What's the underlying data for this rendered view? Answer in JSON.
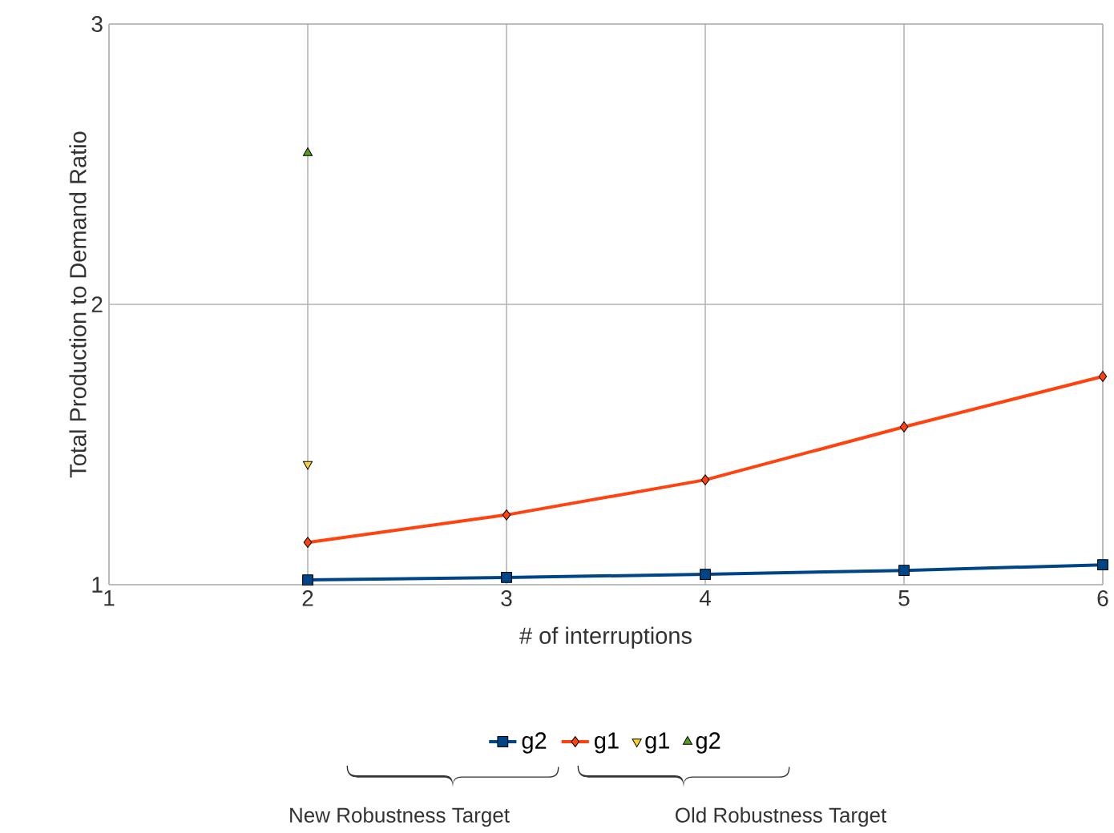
{
  "chart_data": {
    "type": "line",
    "xlabel": "# of interruptions",
    "ylabel": "Total Production to Demand Ratio",
    "x": [
      2,
      3,
      4,
      5,
      6
    ],
    "xlim": [
      1,
      6
    ],
    "xticks": [
      1,
      2,
      3,
      4,
      5,
      6
    ],
    "ylim": [
      1,
      3
    ],
    "yticks": [
      1,
      2,
      3
    ],
    "grid": true,
    "legend": "bottom",
    "series": [
      {
        "name": "g2",
        "color": "#004586",
        "marker": "square",
        "values": [
          1.017,
          1.026,
          1.037,
          1.051,
          1.071
        ]
      },
      {
        "name": "g1",
        "color": "#ff420e",
        "marker": "diamond",
        "values": [
          1.151,
          1.249,
          1.374,
          1.563,
          1.743
        ]
      },
      {
        "name": "g1",
        "type": "scatter",
        "color": "#ffd320",
        "marker": "triangle-down",
        "x": [
          2
        ],
        "values": [
          1.43
        ]
      },
      {
        "name": "g2",
        "type": "scatter",
        "color": "#579d1c",
        "marker": "triangle",
        "x": [
          2
        ],
        "values": [
          2.54
        ]
      }
    ],
    "annotations": [
      "New Robustness Target",
      "Old Robustness Target"
    ]
  }
}
